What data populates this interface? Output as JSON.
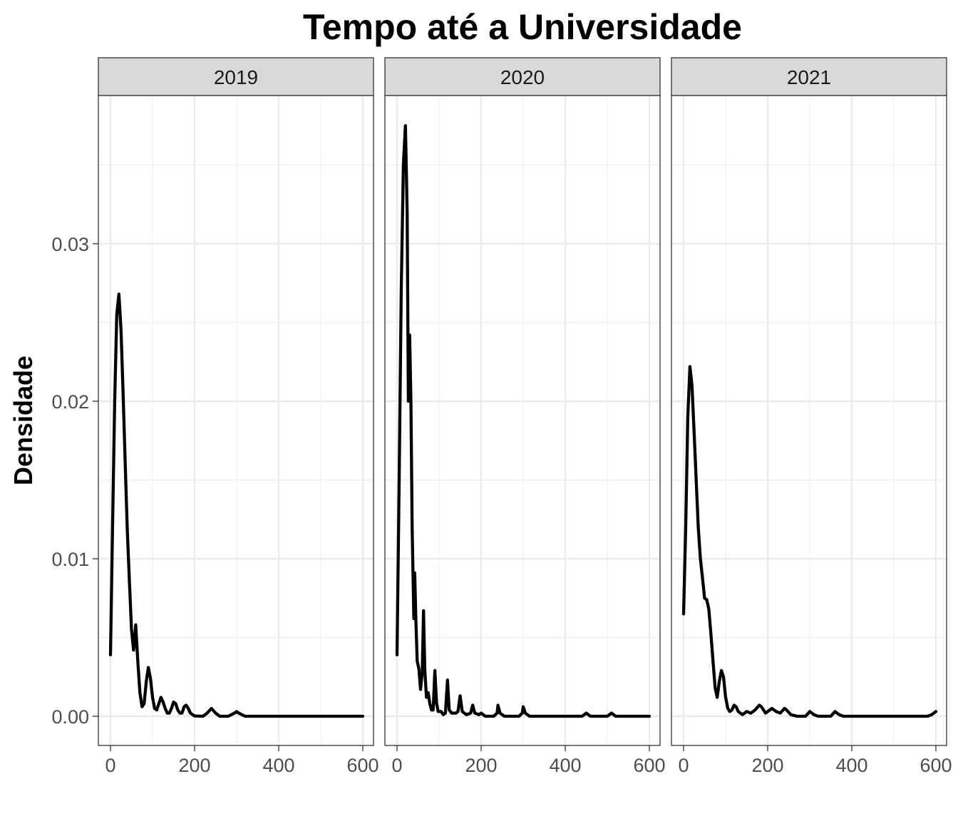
{
  "chart_data": {
    "type": "line",
    "title": "Tempo até a Universidade",
    "xlabel": "",
    "ylabel": "Densidade",
    "xlim": [
      0,
      600
    ],
    "ylim": [
      0,
      0.0375
    ],
    "x_ticks": [
      0,
      200,
      400,
      600
    ],
    "y_ticks": [
      0.0,
      0.01,
      0.02,
      0.03
    ],
    "y_tick_labels": [
      "0.00",
      "0.01",
      "0.02",
      "0.03"
    ],
    "grid": true,
    "facets": [
      {
        "label": "2019",
        "points": [
          [
            0,
            0.0039
          ],
          [
            5,
            0.012
          ],
          [
            10,
            0.02
          ],
          [
            15,
            0.0255
          ],
          [
            20,
            0.0268
          ],
          [
            25,
            0.0245
          ],
          [
            30,
            0.0205
          ],
          [
            35,
            0.016
          ],
          [
            40,
            0.0118
          ],
          [
            45,
            0.0085
          ],
          [
            50,
            0.0055
          ],
          [
            55,
            0.0042
          ],
          [
            60,
            0.0058
          ],
          [
            65,
            0.0035
          ],
          [
            70,
            0.0015
          ],
          [
            75,
            0.0006
          ],
          [
            80,
            0.0008
          ],
          [
            85,
            0.0022
          ],
          [
            90,
            0.0031
          ],
          [
            95,
            0.0024
          ],
          [
            100,
            0.0012
          ],
          [
            105,
            0.0005
          ],
          [
            110,
            0.0004
          ],
          [
            115,
            0.0008
          ],
          [
            120,
            0.0012
          ],
          [
            125,
            0.0009
          ],
          [
            130,
            0.0005
          ],
          [
            135,
            0.0002
          ],
          [
            140,
            0.0002
          ],
          [
            145,
            0.0005
          ],
          [
            150,
            0.0009
          ],
          [
            155,
            0.0008
          ],
          [
            160,
            0.0004
          ],
          [
            165,
            0.0002
          ],
          [
            170,
            0.0002
          ],
          [
            175,
            0.0006
          ],
          [
            180,
            0.0007
          ],
          [
            185,
            0.0005
          ],
          [
            190,
            0.0002
          ],
          [
            200,
            2e-05
          ],
          [
            220,
            0.0
          ],
          [
            230,
            0.0002
          ],
          [
            240,
            0.0005
          ],
          [
            250,
            0.0002
          ],
          [
            260,
            0.0
          ],
          [
            280,
            0.0
          ],
          [
            295,
            0.0002
          ],
          [
            300,
            0.0003
          ],
          [
            305,
            0.0002
          ],
          [
            320,
            0.0
          ],
          [
            400,
            0.0
          ],
          [
            500,
            0.0
          ],
          [
            600,
            0.0
          ]
        ]
      },
      {
        "label": "2020",
        "points": [
          [
            0,
            0.0039
          ],
          [
            5,
            0.015
          ],
          [
            10,
            0.027
          ],
          [
            15,
            0.035
          ],
          [
            20,
            0.0375
          ],
          [
            24,
            0.032
          ],
          [
            27,
            0.02
          ],
          [
            30,
            0.0242
          ],
          [
            33,
            0.02
          ],
          [
            36,
            0.012
          ],
          [
            40,
            0.0062
          ],
          [
            42,
            0.0091
          ],
          [
            45,
            0.006
          ],
          [
            48,
            0.0035
          ],
          [
            52,
            0.003
          ],
          [
            56,
            0.0017
          ],
          [
            60,
            0.0028
          ],
          [
            63,
            0.0067
          ],
          [
            66,
            0.003
          ],
          [
            70,
            0.0012
          ],
          [
            74,
            0.0015
          ],
          [
            78,
            0.0008
          ],
          [
            82,
            0.0004
          ],
          [
            86,
            0.0004
          ],
          [
            90,
            0.0029
          ],
          [
            94,
            0.0008
          ],
          [
            98,
            0.0003
          ],
          [
            105,
            0.0003
          ],
          [
            110,
            0.0001
          ],
          [
            115,
            0.0002
          ],
          [
            120,
            0.0023
          ],
          [
            124,
            0.0004
          ],
          [
            130,
            0.0002
          ],
          [
            140,
            0.0002
          ],
          [
            145,
            0.0003
          ],
          [
            150,
            0.0013
          ],
          [
            155,
            0.0003
          ],
          [
            165,
            0.0001
          ],
          [
            175,
            0.0002
          ],
          [
            180,
            0.0007
          ],
          [
            185,
            0.0002
          ],
          [
            195,
            0.0001
          ],
          [
            200,
            0.0002
          ],
          [
            210,
            0.0
          ],
          [
            230,
            0.0
          ],
          [
            238,
            0.0002
          ],
          [
            240,
            0.0007
          ],
          [
            245,
            0.0002
          ],
          [
            255,
            0.0
          ],
          [
            290,
            0.0
          ],
          [
            298,
            0.0002
          ],
          [
            300,
            0.0006
          ],
          [
            305,
            0.0002
          ],
          [
            315,
            0.0
          ],
          [
            440,
            0.0
          ],
          [
            450,
            0.0002
          ],
          [
            460,
            0.0
          ],
          [
            500,
            0.0
          ],
          [
            510,
            0.0002
          ],
          [
            520,
            0.0
          ],
          [
            600,
            0.0
          ]
        ]
      },
      {
        "label": "2021",
        "points": [
          [
            0,
            0.0065
          ],
          [
            5,
            0.012
          ],
          [
            10,
            0.019
          ],
          [
            15,
            0.0222
          ],
          [
            20,
            0.021
          ],
          [
            25,
            0.018
          ],
          [
            30,
            0.015
          ],
          [
            35,
            0.012
          ],
          [
            40,
            0.01
          ],
          [
            45,
            0.0088
          ],
          [
            50,
            0.0075
          ],
          [
            55,
            0.0074
          ],
          [
            60,
            0.0068
          ],
          [
            65,
            0.0052
          ],
          [
            70,
            0.0035
          ],
          [
            75,
            0.0018
          ],
          [
            80,
            0.0012
          ],
          [
            85,
            0.0022
          ],
          [
            90,
            0.0029
          ],
          [
            95,
            0.0025
          ],
          [
            100,
            0.0012
          ],
          [
            105,
            0.0005
          ],
          [
            110,
            0.0003
          ],
          [
            115,
            0.0004
          ],
          [
            120,
            0.0007
          ],
          [
            125,
            0.0006
          ],
          [
            130,
            0.0003
          ],
          [
            140,
            0.0001
          ],
          [
            150,
            0.0003
          ],
          [
            160,
            0.0002
          ],
          [
            170,
            0.0004
          ],
          [
            180,
            0.0007
          ],
          [
            185,
            0.0006
          ],
          [
            195,
            0.0002
          ],
          [
            200,
            0.0003
          ],
          [
            210,
            0.0005
          ],
          [
            220,
            0.0003
          ],
          [
            230,
            0.0002
          ],
          [
            240,
            0.0005
          ],
          [
            245,
            0.0004
          ],
          [
            255,
            0.0001
          ],
          [
            270,
            0.0
          ],
          [
            290,
            0.0
          ],
          [
            300,
            0.0003
          ],
          [
            310,
            0.0001
          ],
          [
            320,
            0.0
          ],
          [
            350,
            0.0
          ],
          [
            360,
            0.0003
          ],
          [
            370,
            0.0001
          ],
          [
            380,
            0.0
          ],
          [
            580,
            0.0
          ],
          [
            590,
            0.0001
          ],
          [
            600,
            0.0003
          ]
        ]
      }
    ]
  }
}
